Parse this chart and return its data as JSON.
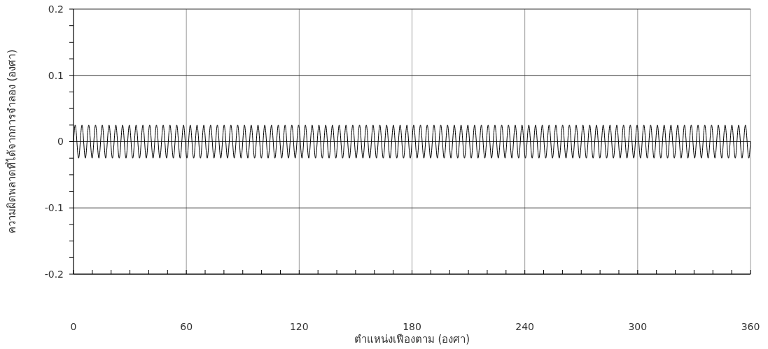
{
  "chart_data": {
    "type": "line",
    "xlabel": "ตำแหน่งเฟืองตาม (องศา)",
    "ylabel": "ความผิดพลาดที่ได้จากการจำลอง (องศา)",
    "xlim": [
      0,
      360
    ],
    "ylim": [
      -0.2,
      0.2
    ],
    "xticks": [
      0,
      {
        "value": 10,
        "label": null
      },
      {
        "value": 20,
        "label": null
      },
      {
        "value": 30,
        "label": null
      },
      {
        "value": 40,
        "label": null
      },
      {
        "value": 50,
        "label": null
      },
      60,
      {
        "value": 70,
        "label": null
      },
      {
        "value": 80,
        "label": null
      },
      {
        "value": 90,
        "label": null
      },
      {
        "value": 100,
        "label": null
      },
      {
        "value": 110,
        "label": null
      },
      120,
      {
        "value": 130,
        "label": null
      },
      {
        "value": 140,
        "label": null
      },
      {
        "value": 150,
        "label": null
      },
      {
        "value": 160,
        "label": null
      },
      {
        "value": 170,
        "label": null
      },
      180,
      {
        "value": 190,
        "label": null
      },
      {
        "value": 200,
        "label": null
      },
      {
        "value": 210,
        "label": null
      },
      {
        "value": 220,
        "label": null
      },
      {
        "value": 230,
        "label": null
      },
      240,
      {
        "value": 250,
        "label": null
      },
      {
        "value": 260,
        "label": null
      },
      {
        "value": 270,
        "label": null
      },
      {
        "value": 280,
        "label": null
      },
      {
        "value": 290,
        "label": null
      },
      300,
      {
        "value": 310,
        "label": null
      },
      {
        "value": 320,
        "label": null
      },
      {
        "value": 330,
        "label": null
      },
      {
        "value": 340,
        "label": null
      },
      {
        "value": 350,
        "label": null
      },
      360
    ],
    "yticks": [
      {
        "value": -0.2,
        "label": "-0.2"
      },
      {
        "value": -0.175,
        "label": null
      },
      {
        "value": -0.15,
        "label": null
      },
      {
        "value": -0.125,
        "label": null
      },
      {
        "value": -0.1,
        "label": "-0.1"
      },
      {
        "value": -0.075,
        "label": null
      },
      {
        "value": -0.05,
        "label": null
      },
      {
        "value": -0.025,
        "label": null
      },
      0,
      {
        "value": 0.025,
        "label": null
      },
      {
        "value": 0.05,
        "label": null
      },
      {
        "value": 0.075,
        "label": null
      },
      {
        "value": 0.1,
        "label": "0.1"
      },
      {
        "value": 0.125,
        "label": null
      },
      {
        "value": 0.15,
        "label": null
      },
      {
        "value": 0.175,
        "label": null
      },
      {
        "value": 0.2,
        "label": "0.2"
      }
    ],
    "grid": true,
    "marker": "none",
    "line_style": "solid",
    "series": [
      {
        "color": "#000000",
        "x": [
          0,
          0.9,
          2.7,
          4.5,
          6.3,
          8.1,
          9.9,
          11.7,
          13.5,
          15.3,
          17.1,
          18.9,
          20.7,
          22.5,
          24.3,
          26.1,
          27.9,
          29.7,
          31.5,
          33.3,
          35.1,
          36.9,
          38.7,
          40.5,
          42.3,
          44.1,
          45.9,
          47.7,
          49.5,
          51.3,
          53.1,
          54.9,
          56.7,
          58.5,
          60.3,
          62.1,
          63.9,
          65.7,
          67.5,
          69.3,
          71.1,
          72.9,
          74.7,
          76.5,
          78.3,
          80.1,
          81.9,
          83.7,
          85.5,
          87.3,
          89.1,
          90.9,
          92.7,
          94.5,
          96.3,
          98.1,
          99.9,
          101.7,
          103.5,
          105.3,
          107.1,
          108.9,
          110.7,
          112.5,
          114.3,
          116.1,
          117.9,
          119.7,
          121.5,
          123.3,
          125.1,
          126.9,
          128.7,
          130.5,
          132.3,
          134.1,
          135.9,
          137.7,
          139.5,
          141.3,
          143.1,
          144.9,
          146.7,
          148.5,
          150.3,
          152.1,
          153.9,
          155.7,
          157.5,
          159.3,
          161.1,
          162.9,
          164.7,
          166.5,
          168.3,
          170.1,
          171.9,
          173.7,
          175.5,
          177.3,
          179.1,
          180.9,
          182.7,
          184.5,
          186.3,
          188.1,
          189.9,
          191.7,
          193.5,
          195.3,
          197.1,
          198.9,
          200.7,
          202.5,
          204.3,
          206.1,
          207.9,
          209.7,
          211.5,
          213.3,
          215.1,
          216.9,
          218.7,
          220.5,
          222.3,
          224.1,
          225.9,
          227.7,
          229.5,
          231.3,
          233.1,
          234.9,
          236.7,
          238.5,
          240.3,
          242.1,
          243.9,
          245.7,
          247.5,
          249.3,
          251.1,
          252.9,
          254.7,
          256.5,
          258.3,
          260.1,
          261.9,
          263.7,
          265.5,
          267.3,
          269.1,
          270.9,
          272.7,
          274.5,
          276.3,
          278.1,
          279.9,
          281.7,
          283.5,
          285.3,
          287.1,
          288.9,
          290.7,
          292.5,
          294.3,
          296.1,
          297.9,
          299.7,
          301.5,
          303.3,
          305.1,
          306.9,
          308.7,
          310.5,
          312.3,
          314.1,
          315.9,
          317.7,
          319.5,
          321.3,
          323.1,
          324.9,
          326.7,
          328.5,
          330.3,
          332.1,
          333.9,
          335.7,
          337.5,
          339.3,
          341.1,
          342.9,
          344.7,
          346.5,
          348.3,
          350.1,
          351.9,
          353.7,
          355.5,
          357.3,
          359.1,
          360
        ],
        "values": [
          0,
          0.025,
          -0.025,
          0.025,
          -0.025,
          0.025,
          -0.025,
          0.025,
          -0.025,
          0.025,
          -0.025,
          0.025,
          -0.025,
          0.025,
          -0.025,
          0.025,
          -0.025,
          0.025,
          -0.025,
          0.025,
          -0.025,
          0.025,
          -0.025,
          0.025,
          -0.025,
          0.025,
          -0.025,
          0.025,
          -0.025,
          0.025,
          -0.025,
          0.025,
          -0.025,
          0.025,
          -0.025,
          0.025,
          -0.025,
          0.025,
          -0.025,
          0.025,
          -0.025,
          0.025,
          -0.025,
          0.025,
          -0.025,
          0.025,
          -0.025,
          0.025,
          -0.025,
          0.025,
          -0.025,
          0.025,
          -0.025,
          0.025,
          -0.025,
          0.025,
          -0.025,
          0.025,
          -0.025,
          0.025,
          -0.025,
          0.025,
          -0.025,
          0.025,
          -0.025,
          0.025,
          -0.025,
          0.025,
          -0.025,
          0.025,
          -0.025,
          0.025,
          -0.025,
          0.025,
          -0.025,
          0.025,
          -0.025,
          0.025,
          -0.025,
          0.025,
          -0.025,
          0.025,
          -0.025,
          0.025,
          -0.025,
          0.025,
          -0.025,
          0.025,
          -0.025,
          0.025,
          -0.025,
          0.025,
          -0.025,
          0.025,
          -0.025,
          0.025,
          -0.025,
          0.025,
          -0.025,
          0.025,
          -0.025,
          0.025,
          -0.025,
          0.025,
          -0.025,
          0.025,
          -0.025,
          0.025,
          -0.025,
          0.025,
          -0.025,
          0.025,
          -0.025,
          0.025,
          -0.025,
          0.025,
          -0.025,
          0.025,
          -0.025,
          0.025,
          -0.025,
          0.025,
          -0.025,
          0.025,
          -0.025,
          0.025,
          -0.025,
          0.025,
          -0.025,
          0.025,
          -0.025,
          0.025,
          -0.025,
          0.025,
          -0.025,
          0.025,
          -0.025,
          0.025,
          -0.025,
          0.025,
          -0.025,
          0.025,
          -0.025,
          0.025,
          -0.025,
          0.025,
          -0.025,
          0.025,
          -0.025,
          0.025,
          -0.025,
          0.025,
          -0.025,
          0.025,
          -0.025,
          0.025,
          -0.025,
          0.025,
          -0.025,
          0.025,
          -0.025,
          0.025,
          -0.025,
          0.025,
          -0.025,
          0.025,
          -0.025,
          0.025,
          -0.025,
          0.025,
          -0.025,
          0.025,
          -0.025,
          0.025,
          -0.025,
          0.025,
          -0.025,
          0.025,
          -0.025,
          0.025,
          -0.025,
          0.025,
          -0.025,
          0.025,
          -0.025,
          0.025,
          -0.025,
          0.025,
          -0.025,
          0.025,
          -0.025,
          0.025,
          -0.025,
          0.025,
          -0.025,
          0.025,
          -0.025,
          0.025,
          -0.025,
          0.025,
          -0.025,
          0
        ]
      }
    ]
  }
}
